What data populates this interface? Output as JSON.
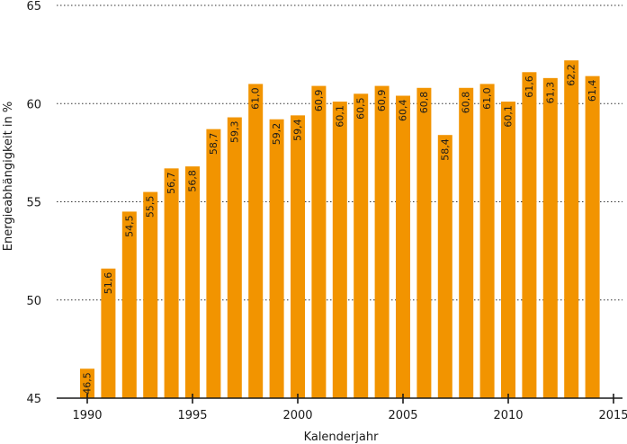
{
  "chart_data": {
    "type": "bar",
    "xlabel": "Kalenderjahr",
    "ylabel": "Energieabhängigkeit in %",
    "ylim": [
      45,
      65
    ],
    "yticks": [
      45,
      50,
      55,
      60,
      65
    ],
    "xlim": [
      1989,
      2015
    ],
    "xticks": [
      1990,
      1995,
      2000,
      2005,
      2010,
      2015
    ],
    "grid": true,
    "bar_color": "#f29400",
    "categories": [
      1990,
      1991,
      1992,
      1993,
      1994,
      1995,
      1996,
      1997,
      1998,
      1999,
      2000,
      2001,
      2002,
      2003,
      2004,
      2005,
      2006,
      2007,
      2008,
      2009,
      2010,
      2011,
      2012,
      2013,
      2014
    ],
    "values": [
      46.5,
      51.6,
      54.5,
      55.5,
      56.7,
      56.8,
      58.7,
      59.3,
      61.0,
      59.2,
      59.4,
      60.9,
      60.1,
      60.5,
      60.9,
      60.4,
      60.8,
      58.4,
      60.8,
      61.0,
      60.1,
      61.6,
      61.3,
      62.2,
      61.4
    ],
    "value_labels": [
      "46,5",
      "51,6",
      "54,5",
      "55,5",
      "56,7",
      "56,8",
      "58,7",
      "59,3",
      "61,0",
      "59,2",
      "59,4",
      "60,9",
      "60,1",
      "60,5",
      "60,9",
      "60,4",
      "60,8",
      "58,4",
      "60,8",
      "61,0",
      "60,1",
      "61,6",
      "61,3",
      "62,2",
      "61,4"
    ]
  }
}
